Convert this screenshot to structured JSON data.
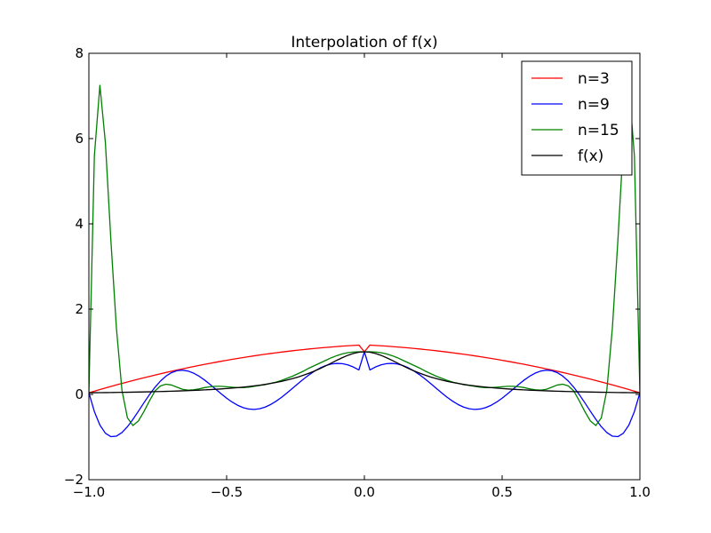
{
  "chart_data": {
    "type": "line",
    "title": "Interpolation of f(x)",
    "xlabel": "",
    "ylabel": "",
    "xlim": [
      -1.0,
      1.0
    ],
    "ylim": [
      -2,
      8
    ],
    "grid": false,
    "legend_position": "top-right",
    "x_ticks": [
      -1.0,
      -0.5,
      0.0,
      0.5,
      1.0
    ],
    "x_tick_labels": [
      "−1.0",
      "−0.5",
      "0.0",
      "0.5",
      "1.0"
    ],
    "y_ticks": [
      -2,
      0,
      2,
      4,
      6,
      8
    ],
    "y_tick_labels": [
      "−2",
      "0",
      "2",
      "4",
      "6",
      "8"
    ],
    "x": [
      -1.0,
      -0.98,
      -0.96,
      -0.94,
      -0.92,
      -0.9,
      -0.88,
      -0.86,
      -0.84,
      -0.82,
      -0.8,
      -0.78,
      -0.76,
      -0.74,
      -0.72,
      -0.7,
      -0.68,
      -0.66,
      -0.64,
      -0.62,
      -0.6,
      -0.58,
      -0.56,
      -0.54,
      -0.52,
      -0.5,
      -0.48,
      -0.46,
      -0.44,
      -0.42,
      -0.4,
      -0.38,
      -0.36,
      -0.34,
      -0.32,
      -0.3,
      -0.28,
      -0.26,
      -0.24,
      -0.22,
      -0.2,
      -0.18,
      -0.16,
      -0.14,
      -0.12,
      -0.1,
      -0.08,
      -0.06,
      -0.04,
      -0.02,
      0.0,
      0.02,
      0.04,
      0.06,
      0.08,
      0.1,
      0.12,
      0.14,
      0.16,
      0.18,
      0.2,
      0.22,
      0.24,
      0.26,
      0.28,
      0.3,
      0.32,
      0.34,
      0.36,
      0.38,
      0.4,
      0.42,
      0.44,
      0.46,
      0.48,
      0.5,
      0.52,
      0.54,
      0.56,
      0.58,
      0.6,
      0.62,
      0.64,
      0.66,
      0.68,
      0.7,
      0.72,
      0.74,
      0.76,
      0.78,
      0.8,
      0.82,
      0.84,
      0.86,
      0.88,
      0.9,
      0.92,
      0.94,
      0.96,
      0.98,
      1.0
    ],
    "series": [
      {
        "name": "n=3",
        "color": "#ff0000",
        "values": [
          0.0385,
          0.0767,
          0.1143,
          0.1512,
          0.1874,
          0.223,
          0.2579,
          0.2922,
          0.3259,
          0.3589,
          0.3913,
          0.423,
          0.4541,
          0.4846,
          0.5144,
          0.5436,
          0.5721,
          0.6,
          0.6273,
          0.6539,
          0.6799,
          0.7053,
          0.73,
          0.7541,
          0.7775,
          0.8003,
          0.8225,
          0.844,
          0.8649,
          0.8852,
          0.9048,
          0.9238,
          0.9421,
          0.9598,
          0.9769,
          0.9933,
          1.0091,
          1.0243,
          1.0388,
          1.0527,
          1.066,
          1.0786,
          1.0906,
          1.102,
          1.1127,
          1.1228,
          1.1322,
          1.141,
          1.1492,
          1.1568,
          1.0,
          1.1568,
          1.1492,
          1.141,
          1.1322,
          1.1228,
          1.1127,
          1.102,
          1.0906,
          1.0786,
          1.066,
          1.0527,
          1.0388,
          1.0243,
          1.0091,
          0.9933,
          0.9769,
          0.9598,
          0.9421,
          0.9238,
          0.9048,
          0.8852,
          0.8649,
          0.844,
          0.8225,
          0.8003,
          0.7775,
          0.7541,
          0.73,
          0.7053,
          0.6799,
          0.6539,
          0.6273,
          0.6,
          0.5721,
          0.5436,
          0.5144,
          0.4846,
          0.4541,
          0.423,
          0.3913,
          0.3589,
          0.3259,
          0.2922,
          0.2579,
          0.223,
          0.1874,
          0.1512,
          0.1143,
          0.0767,
          0.0385
        ]
      },
      {
        "name": "n=9",
        "color": "#0000ff",
        "values": [
          0.0385,
          -0.4032,
          -0.7196,
          -0.9102,
          -0.9902,
          -0.9783,
          -0.8943,
          -0.757,
          -0.584,
          -0.3916,
          -0.194,
          -0.0037,
          0.1687,
          0.315,
          0.4301,
          0.511,
          0.5569,
          0.5686,
          0.5484,
          0.4998,
          0.4276,
          0.337,
          0.2339,
          0.1246,
          0.0153,
          -0.0879,
          -0.1795,
          -0.2548,
          -0.3101,
          -0.3428,
          -0.3514,
          -0.3357,
          -0.2967,
          -0.2364,
          -0.1579,
          -0.0648,
          0.0388,
          0.1478,
          0.2577,
          0.3641,
          0.4627,
          0.5498,
          0.6222,
          0.6773,
          0.7129,
          0.7277,
          0.7208,
          0.6923,
          0.6428,
          0.5738,
          1.0,
          0.5738,
          0.6428,
          0.6923,
          0.7208,
          0.7277,
          0.7129,
          0.6773,
          0.6222,
          0.5498,
          0.4627,
          0.3641,
          0.2577,
          0.1478,
          0.0388,
          -0.0648,
          -0.1579,
          -0.2364,
          -0.2967,
          -0.3357,
          -0.3514,
          -0.3428,
          -0.3101,
          -0.2548,
          -0.1795,
          -0.0879,
          0.0153,
          0.1246,
          0.2339,
          0.337,
          0.4276,
          0.4998,
          0.5484,
          0.5686,
          0.5569,
          0.511,
          0.4301,
          0.315,
          0.1687,
          -0.0037,
          -0.194,
          -0.3916,
          -0.584,
          -0.757,
          -0.8943,
          -0.9783,
          -0.9902,
          -0.9102,
          -0.7196,
          -0.4032,
          0.0385
        ]
      },
      {
        "name": "n=15",
        "color": "#008000",
        "values": [
          0.0385,
          5.6,
          7.25,
          5.9,
          3.6,
          1.55,
          0.1,
          -0.55,
          -0.73,
          -0.62,
          -0.4,
          -0.15,
          0.08,
          0.2,
          0.24,
          0.22,
          0.17,
          0.12,
          0.1,
          0.11,
          0.13,
          0.16,
          0.18,
          0.19,
          0.19,
          0.18,
          0.17,
          0.16,
          0.16,
          0.17,
          0.19,
          0.21,
          0.23,
          0.26,
          0.29,
          0.33,
          0.38,
          0.43,
          0.49,
          0.55,
          0.62,
          0.68,
          0.74,
          0.8,
          0.86,
          0.91,
          0.95,
          0.98,
          0.995,
          1.0,
          1.0,
          1.0,
          0.995,
          0.98,
          0.95,
          0.91,
          0.86,
          0.8,
          0.74,
          0.68,
          0.62,
          0.55,
          0.49,
          0.43,
          0.38,
          0.33,
          0.29,
          0.26,
          0.23,
          0.21,
          0.19,
          0.17,
          0.16,
          0.16,
          0.17,
          0.18,
          0.19,
          0.19,
          0.18,
          0.16,
          0.13,
          0.11,
          0.1,
          0.12,
          0.17,
          0.22,
          0.24,
          0.2,
          0.08,
          -0.15,
          -0.4,
          -0.62,
          -0.73,
          -0.55,
          0.1,
          1.55,
          3.6,
          5.9,
          7.25,
          5.6,
          0.0385
        ]
      },
      {
        "name": "f(x)",
        "color": "#000000",
        "values": [
          0.0385,
          0.04,
          0.0416,
          0.0433,
          0.0451,
          0.0471,
          0.0491,
          0.0513,
          0.0536,
          0.0561,
          0.0588,
          0.0617,
          0.0648,
          0.0681,
          0.0716,
          0.0755,
          0.0796,
          0.0841,
          0.089,
          0.0942,
          0.1,
          0.1063,
          0.1131,
          0.1206,
          0.1289,
          0.1379,
          0.1479,
          0.159,
          0.1712,
          0.1848,
          0.2,
          0.2169,
          0.2358,
          0.2571,
          0.2809,
          0.3077,
          0.3378,
          0.3717,
          0.4098,
          0.4525,
          0.5,
          0.5525,
          0.6098,
          0.6711,
          0.7353,
          0.8,
          0.8621,
          0.9174,
          0.9615,
          0.9901,
          1.0,
          0.9901,
          0.9615,
          0.9174,
          0.8621,
          0.8,
          0.7353,
          0.6711,
          0.6098,
          0.5525,
          0.5,
          0.4525,
          0.4098,
          0.3717,
          0.3378,
          0.3077,
          0.2809,
          0.2571,
          0.2358,
          0.2169,
          0.2,
          0.1848,
          0.1712,
          0.159,
          0.1479,
          0.1379,
          0.1289,
          0.1206,
          0.1131,
          0.1063,
          0.1,
          0.0942,
          0.089,
          0.0841,
          0.0796,
          0.0755,
          0.0716,
          0.0681,
          0.0648,
          0.0617,
          0.0588,
          0.0561,
          0.0536,
          0.0513,
          0.0491,
          0.0471,
          0.0451,
          0.0433,
          0.0416,
          0.04,
          0.0385
        ]
      }
    ]
  }
}
